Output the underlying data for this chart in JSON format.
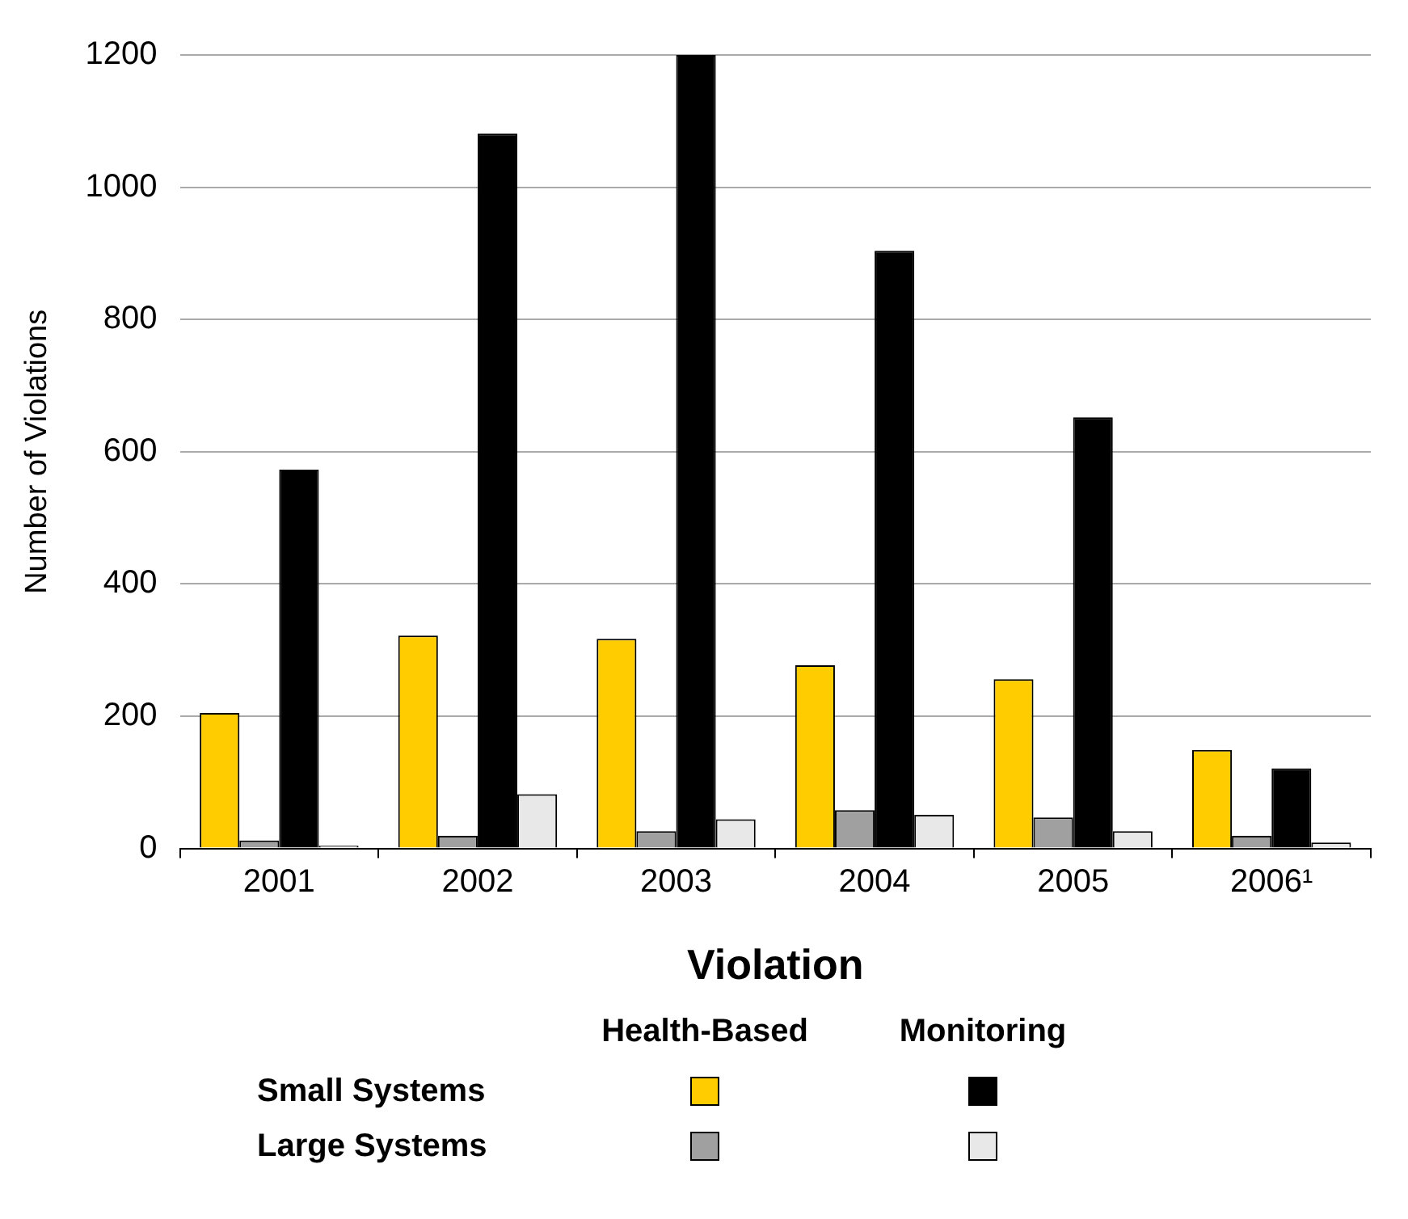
{
  "chart_data": {
    "type": "bar",
    "ylabel": "Number of Violations",
    "xlabel": "Violation",
    "categories": [
      "2001",
      "2002",
      "2003",
      "2004",
      "2005",
      "2006¹"
    ],
    "series": [
      {
        "color": "#ffcc00",
        "values": [
          205,
          322,
          317,
          277,
          256,
          149
        ]
      },
      {
        "color": "#a0a0a0",
        "values": [
          12,
          19,
          26,
          58,
          47,
          19
        ]
      },
      {
        "color": "#000000",
        "values": [
          573,
          1081,
          1200,
          904,
          652,
          121
        ]
      },
      {
        "color": "#e8e8e8",
        "values": [
          4,
          82,
          44,
          51,
          26,
          9
        ]
      }
    ],
    "ylim": [
      0,
      1200
    ],
    "yticks": [
      0,
      200,
      400,
      600,
      800,
      1000,
      1200
    ],
    "grid": "y",
    "legend": false,
    "annotations": [
      "Health-Based",
      "Monitoring",
      "Small Systems",
      "Large Systems"
    ]
  }
}
